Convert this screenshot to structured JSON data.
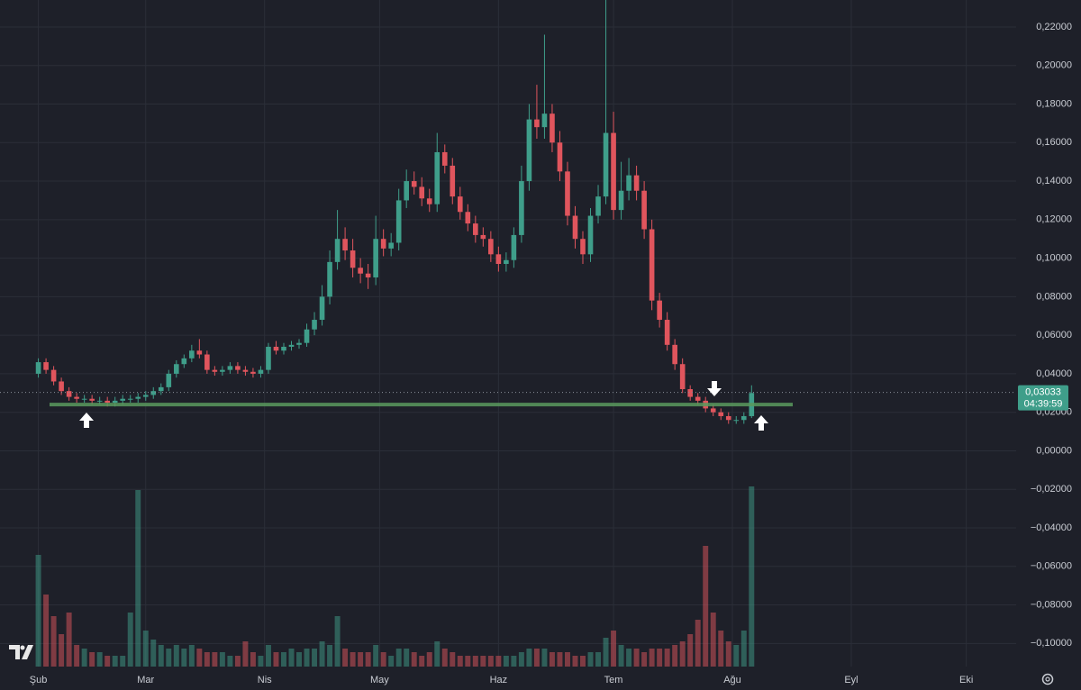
{
  "chart_data": {
    "type": "candlestick",
    "x": [
      0,
      2,
      4,
      6,
      8,
      10,
      12,
      14,
      16,
      18,
      20,
      22,
      24,
      26,
      28,
      30,
      32,
      34,
      36,
      38,
      40,
      42,
      44,
      46,
      48,
      50,
      52,
      54,
      56,
      58,
      60,
      62,
      64,
      66,
      68,
      70,
      72,
      74,
      76,
      78,
      80,
      82,
      84,
      86,
      88,
      90,
      92,
      94,
      96,
      98,
      100,
      102,
      104,
      106,
      108,
      110,
      112,
      114,
      116,
      118,
      120,
      122,
      124,
      126,
      128,
      130,
      132,
      134,
      136,
      138,
      140,
      142,
      144,
      146,
      148,
      150,
      152,
      154,
      156,
      158,
      160,
      162,
      164,
      166,
      168,
      170,
      172,
      174,
      176,
      178,
      180,
      182,
      184,
      186
    ],
    "open": [
      0.04,
      0.046,
      0.042,
      0.036,
      0.031,
      0.028,
      0.027,
      0.027,
      0.026,
      0.026,
      0.025,
      0.026,
      0.027,
      0.027,
      0.028,
      0.029,
      0.031,
      0.033,
      0.04,
      0.045,
      0.048,
      0.052,
      0.05,
      0.042,
      0.041,
      0.042,
      0.044,
      0.042,
      0.041,
      0.04,
      0.042,
      0.054,
      0.052,
      0.054,
      0.055,
      0.056,
      0.063,
      0.068,
      0.08,
      0.098,
      0.11,
      0.104,
      0.095,
      0.092,
      0.09,
      0.11,
      0.105,
      0.108,
      0.13,
      0.14,
      0.137,
      0.131,
      0.128,
      0.155,
      0.148,
      0.132,
      0.124,
      0.118,
      0.112,
      0.11,
      0.102,
      0.097,
      0.099,
      0.112,
      0.14,
      0.172,
      0.168,
      0.175,
      0.16,
      0.145,
      0.122,
      0.11,
      0.102,
      0.122,
      0.132,
      0.165,
      0.125,
      0.135,
      0.143,
      0.135,
      0.115,
      0.078,
      0.068,
      0.055,
      0.045,
      0.032,
      0.028,
      0.026,
      0.022,
      0.02,
      0.018,
      0.016,
      0.016,
      0.018
    ],
    "high": [
      0.048,
      0.048,
      0.044,
      0.038,
      0.033,
      0.03,
      0.029,
      0.029,
      0.028,
      0.028,
      0.028,
      0.029,
      0.029,
      0.03,
      0.031,
      0.033,
      0.035,
      0.042,
      0.047,
      0.05,
      0.055,
      0.058,
      0.052,
      0.044,
      0.044,
      0.046,
      0.046,
      0.044,
      0.043,
      0.044,
      0.056,
      0.057,
      0.056,
      0.057,
      0.058,
      0.066,
      0.072,
      0.086,
      0.104,
      0.125,
      0.116,
      0.11,
      0.1,
      0.097,
      0.122,
      0.115,
      0.113,
      0.136,
      0.146,
      0.145,
      0.142,
      0.136,
      0.165,
      0.159,
      0.152,
      0.137,
      0.128,
      0.122,
      0.116,
      0.114,
      0.106,
      0.103,
      0.116,
      0.148,
      0.18,
      0.19,
      0.216,
      0.18,
      0.166,
      0.15,
      0.127,
      0.114,
      0.126,
      0.138,
      0.234,
      0.176,
      0.15,
      0.152,
      0.148,
      0.14,
      0.12,
      0.082,
      0.072,
      0.058,
      0.048,
      0.034,
      0.03,
      0.028,
      0.024,
      0.022,
      0.02,
      0.018,
      0.02,
      0.034
    ],
    "low": [
      0.038,
      0.04,
      0.034,
      0.029,
      0.026,
      0.025,
      0.025,
      0.024,
      0.024,
      0.023,
      0.023,
      0.024,
      0.025,
      0.025,
      0.026,
      0.027,
      0.029,
      0.031,
      0.038,
      0.043,
      0.046,
      0.048,
      0.04,
      0.039,
      0.039,
      0.04,
      0.04,
      0.039,
      0.038,
      0.038,
      0.04,
      0.05,
      0.05,
      0.052,
      0.053,
      0.054,
      0.06,
      0.065,
      0.076,
      0.094,
      0.099,
      0.09,
      0.087,
      0.084,
      0.086,
      0.101,
      0.101,
      0.104,
      0.126,
      0.133,
      0.127,
      0.124,
      0.124,
      0.144,
      0.128,
      0.12,
      0.114,
      0.108,
      0.106,
      0.098,
      0.093,
      0.093,
      0.095,
      0.108,
      0.135,
      0.162,
      0.162,
      0.155,
      0.14,
      0.117,
      0.105,
      0.097,
      0.098,
      0.118,
      0.128,
      0.12,
      0.12,
      0.13,
      0.13,
      0.11,
      0.073,
      0.064,
      0.052,
      0.042,
      0.03,
      0.026,
      0.024,
      0.02,
      0.018,
      0.016,
      0.014,
      0.014,
      0.014,
      0.017
    ],
    "close": [
      0.046,
      0.042,
      0.036,
      0.031,
      0.028,
      0.027,
      0.027,
      0.026,
      0.026,
      0.025,
      0.026,
      0.027,
      0.027,
      0.028,
      0.029,
      0.031,
      0.033,
      0.04,
      0.045,
      0.048,
      0.052,
      0.05,
      0.042,
      0.041,
      0.042,
      0.044,
      0.042,
      0.041,
      0.04,
      0.042,
      0.054,
      0.052,
      0.054,
      0.055,
      0.056,
      0.063,
      0.068,
      0.08,
      0.098,
      0.11,
      0.104,
      0.095,
      0.092,
      0.09,
      0.11,
      0.105,
      0.108,
      0.13,
      0.14,
      0.137,
      0.131,
      0.128,
      0.155,
      0.148,
      0.132,
      0.124,
      0.118,
      0.112,
      0.11,
      0.102,
      0.097,
      0.099,
      0.112,
      0.14,
      0.172,
      0.168,
      0.175,
      0.16,
      0.145,
      0.122,
      0.11,
      0.102,
      0.122,
      0.132,
      0.165,
      0.125,
      0.135,
      0.143,
      0.135,
      0.115,
      0.078,
      0.068,
      0.055,
      0.045,
      0.032,
      0.028,
      0.026,
      0.022,
      0.02,
      0.018,
      0.016,
      0.016,
      0.018,
      0.03
    ],
    "volume": [
      62,
      40,
      28,
      18,
      30,
      12,
      10,
      8,
      8,
      6,
      6,
      6,
      30,
      98,
      20,
      15,
      12,
      10,
      12,
      10,
      12,
      10,
      8,
      8,
      8,
      6,
      6,
      14,
      8,
      6,
      12,
      8,
      8,
      10,
      8,
      10,
      10,
      14,
      12,
      28,
      10,
      8,
      8,
      8,
      12,
      8,
      6,
      10,
      10,
      8,
      6,
      8,
      14,
      10,
      8,
      6,
      6,
      6,
      6,
      6,
      6,
      6,
      6,
      8,
      10,
      10,
      10,
      8,
      8,
      8,
      6,
      6,
      8,
      8,
      16,
      20,
      12,
      10,
      10,
      8,
      10,
      10,
      10,
      12,
      14,
      18,
      26,
      67,
      30,
      20,
      14,
      12,
      20,
      100
    ],
    "vlim": [
      0,
      100
    ],
    "xlim": [
      -10,
      255
    ],
    "xticks": [
      {
        "value": 0,
        "label": "Şub"
      },
      {
        "value": 28,
        "label": "Mar"
      },
      {
        "value": 59,
        "label": "Nis"
      },
      {
        "value": 89,
        "label": "May"
      },
      {
        "value": 120,
        "label": "Haz"
      },
      {
        "value": 150,
        "label": "Tem"
      },
      {
        "value": 181,
        "label": "Ağu"
      },
      {
        "value": 212,
        "label": "Eyl"
      },
      {
        "value": 242,
        "label": "Eki"
      }
    ],
    "ylim": [
      -0.112,
      0.234
    ],
    "yticks": [
      {
        "value": 0.22,
        "label": "0,22000"
      },
      {
        "value": 0.2,
        "label": "0,20000"
      },
      {
        "value": 0.18,
        "label": "0,18000"
      },
      {
        "value": 0.16,
        "label": "0,16000"
      },
      {
        "value": 0.14,
        "label": "0,14000"
      },
      {
        "value": 0.12,
        "label": "0,12000"
      },
      {
        "value": 0.1,
        "label": "0,10000"
      },
      {
        "value": 0.08,
        "label": "0,08000"
      },
      {
        "value": 0.06,
        "label": "0,06000"
      },
      {
        "value": 0.04,
        "label": "0,04000"
      },
      {
        "value": 0.02,
        "label": "0,02000"
      },
      {
        "value": 0,
        "label": "0,00000"
      },
      {
        "value": -0.02,
        "label": "−0,02000"
      },
      {
        "value": -0.04,
        "label": "−0,04000"
      },
      {
        "value": -0.06,
        "label": "−0,06000"
      },
      {
        "value": -0.08,
        "label": "−0,08000"
      },
      {
        "value": -0.1,
        "label": "−0,10000"
      }
    ],
    "grid": true,
    "up_color": "#3f9e8a",
    "down_color": "#e0555d",
    "last_price": {
      "value": 0.03033,
      "label": "0,03033"
    },
    "countdown": "04:39:59",
    "support_level": 0.024,
    "support_color": "#5a9a5e"
  }
}
